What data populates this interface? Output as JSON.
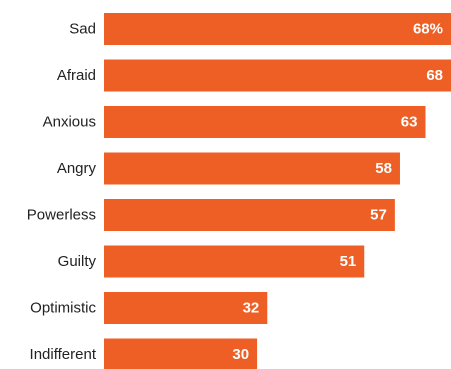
{
  "chart_data": {
    "type": "bar",
    "orientation": "horizontal",
    "categories": [
      "Sad",
      "Afraid",
      "Anxious",
      "Angry",
      "Powerless",
      "Guilty",
      "Optimistic",
      "Indifferent"
    ],
    "values": [
      68,
      68,
      63,
      58,
      57,
      51,
      32,
      30
    ],
    "value_labels": [
      "68%",
      "68",
      "63",
      "58",
      "57",
      "51",
      "32",
      "30"
    ],
    "title": "",
    "xlabel": "",
    "ylabel": "",
    "xlim": [
      0,
      68
    ],
    "grid": false,
    "bar_color": "#EE5F25"
  }
}
